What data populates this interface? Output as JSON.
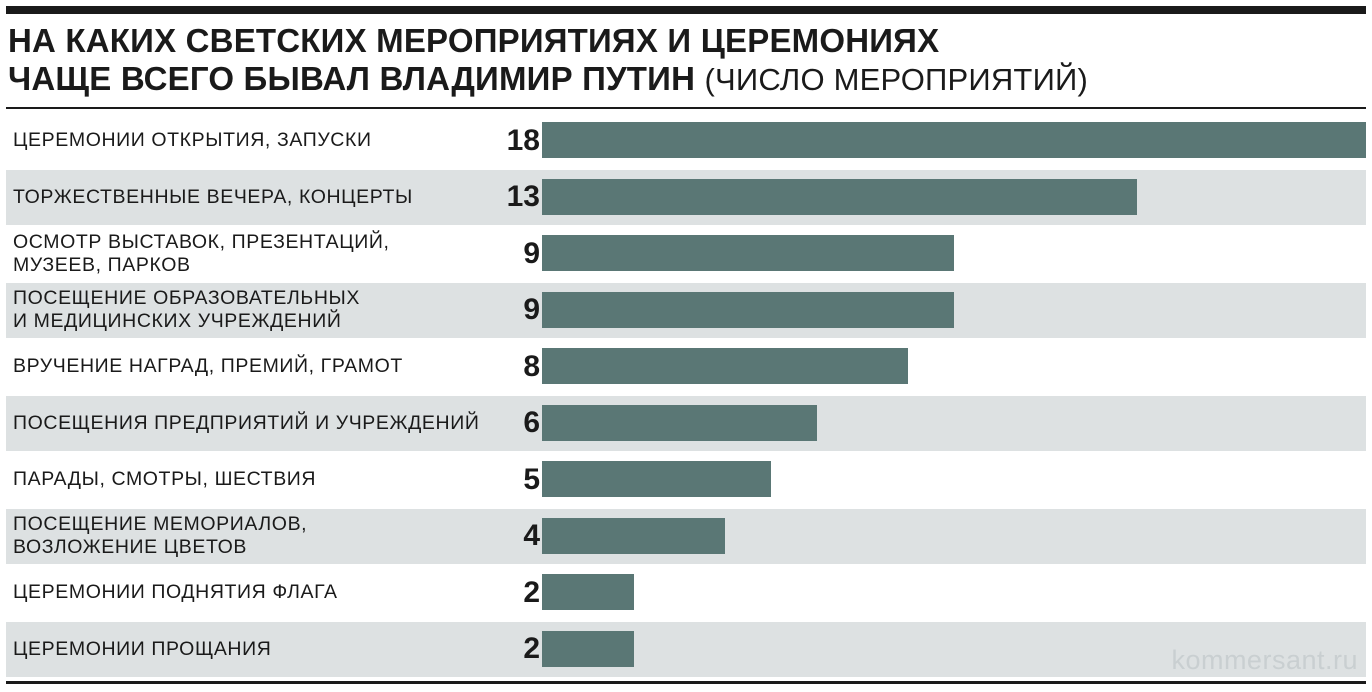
{
  "title": {
    "line1": "НА КАКИХ СВЕТСКИХ МЕРОПРИЯТИЯХ И ЦЕРЕМОНИЯХ",
    "line2": "ЧАЩЕ ВСЕГО БЫВАЛ ВЛАДИМИР ПУТИН",
    "unit": "(ЧИСЛО МЕРОПРИЯТИЙ)"
  },
  "watermark": "kommersant.ru",
  "colors": {
    "bar": "#5a7775",
    "row_shade": "#dde1e2",
    "text": "#1a1a1a"
  },
  "chart_data": {
    "type": "bar",
    "orientation": "horizontal",
    "title": "НА КАКИХ СВЕТСКИХ МЕРОПРИЯТИЯХ И ЦЕРЕМОНИЯХ ЧАЩЕ ВСЕГО БЫВАЛ ВЛАДИМИР ПУТИН",
    "unit_label": "(ЧИСЛО МЕРОПРИЯТИЙ)",
    "categories": [
      "ЦЕРЕМОНИИ ОТКРЫТИЯ, ЗАПУСКИ",
      "ТОРЖЕСТВЕННЫЕ ВЕЧЕРА, КОНЦЕРТЫ",
      "ОСМОТР ВЫСТАВОК, ПРЕЗЕНТАЦИЙ,\nМУЗЕЕВ, ПАРКОВ",
      "ПОСЕЩЕНИЕ ОБРАЗОВАТЕЛЬНЫХ\nИ МЕДИЦИНСКИХ УЧРЕЖДЕНИЙ",
      "ВРУЧЕНИЕ НАГРАД, ПРЕМИЙ, ГРАМОТ",
      "ПОСЕЩЕНИЯ ПРЕДПРИЯТИЙ И УЧРЕЖДЕНИЙ",
      "ПАРАДЫ, СМОТРЫ, ШЕСТВИЯ",
      "ПОСЕЩЕНИЕ МЕМОРИАЛОВ,\nВОЗЛОЖЕНИЕ ЦВЕТОВ",
      "ЦЕРЕМОНИИ ПОДНЯТИЯ ФЛАГА",
      "ЦЕРЕМОНИИ ПРОЩАНИЯ"
    ],
    "values": [
      18,
      13,
      9,
      9,
      8,
      6,
      5,
      4,
      2,
      2
    ],
    "xlim": [
      0,
      18
    ],
    "data_labels": true,
    "grid": false,
    "alternating_row_shading": true
  }
}
